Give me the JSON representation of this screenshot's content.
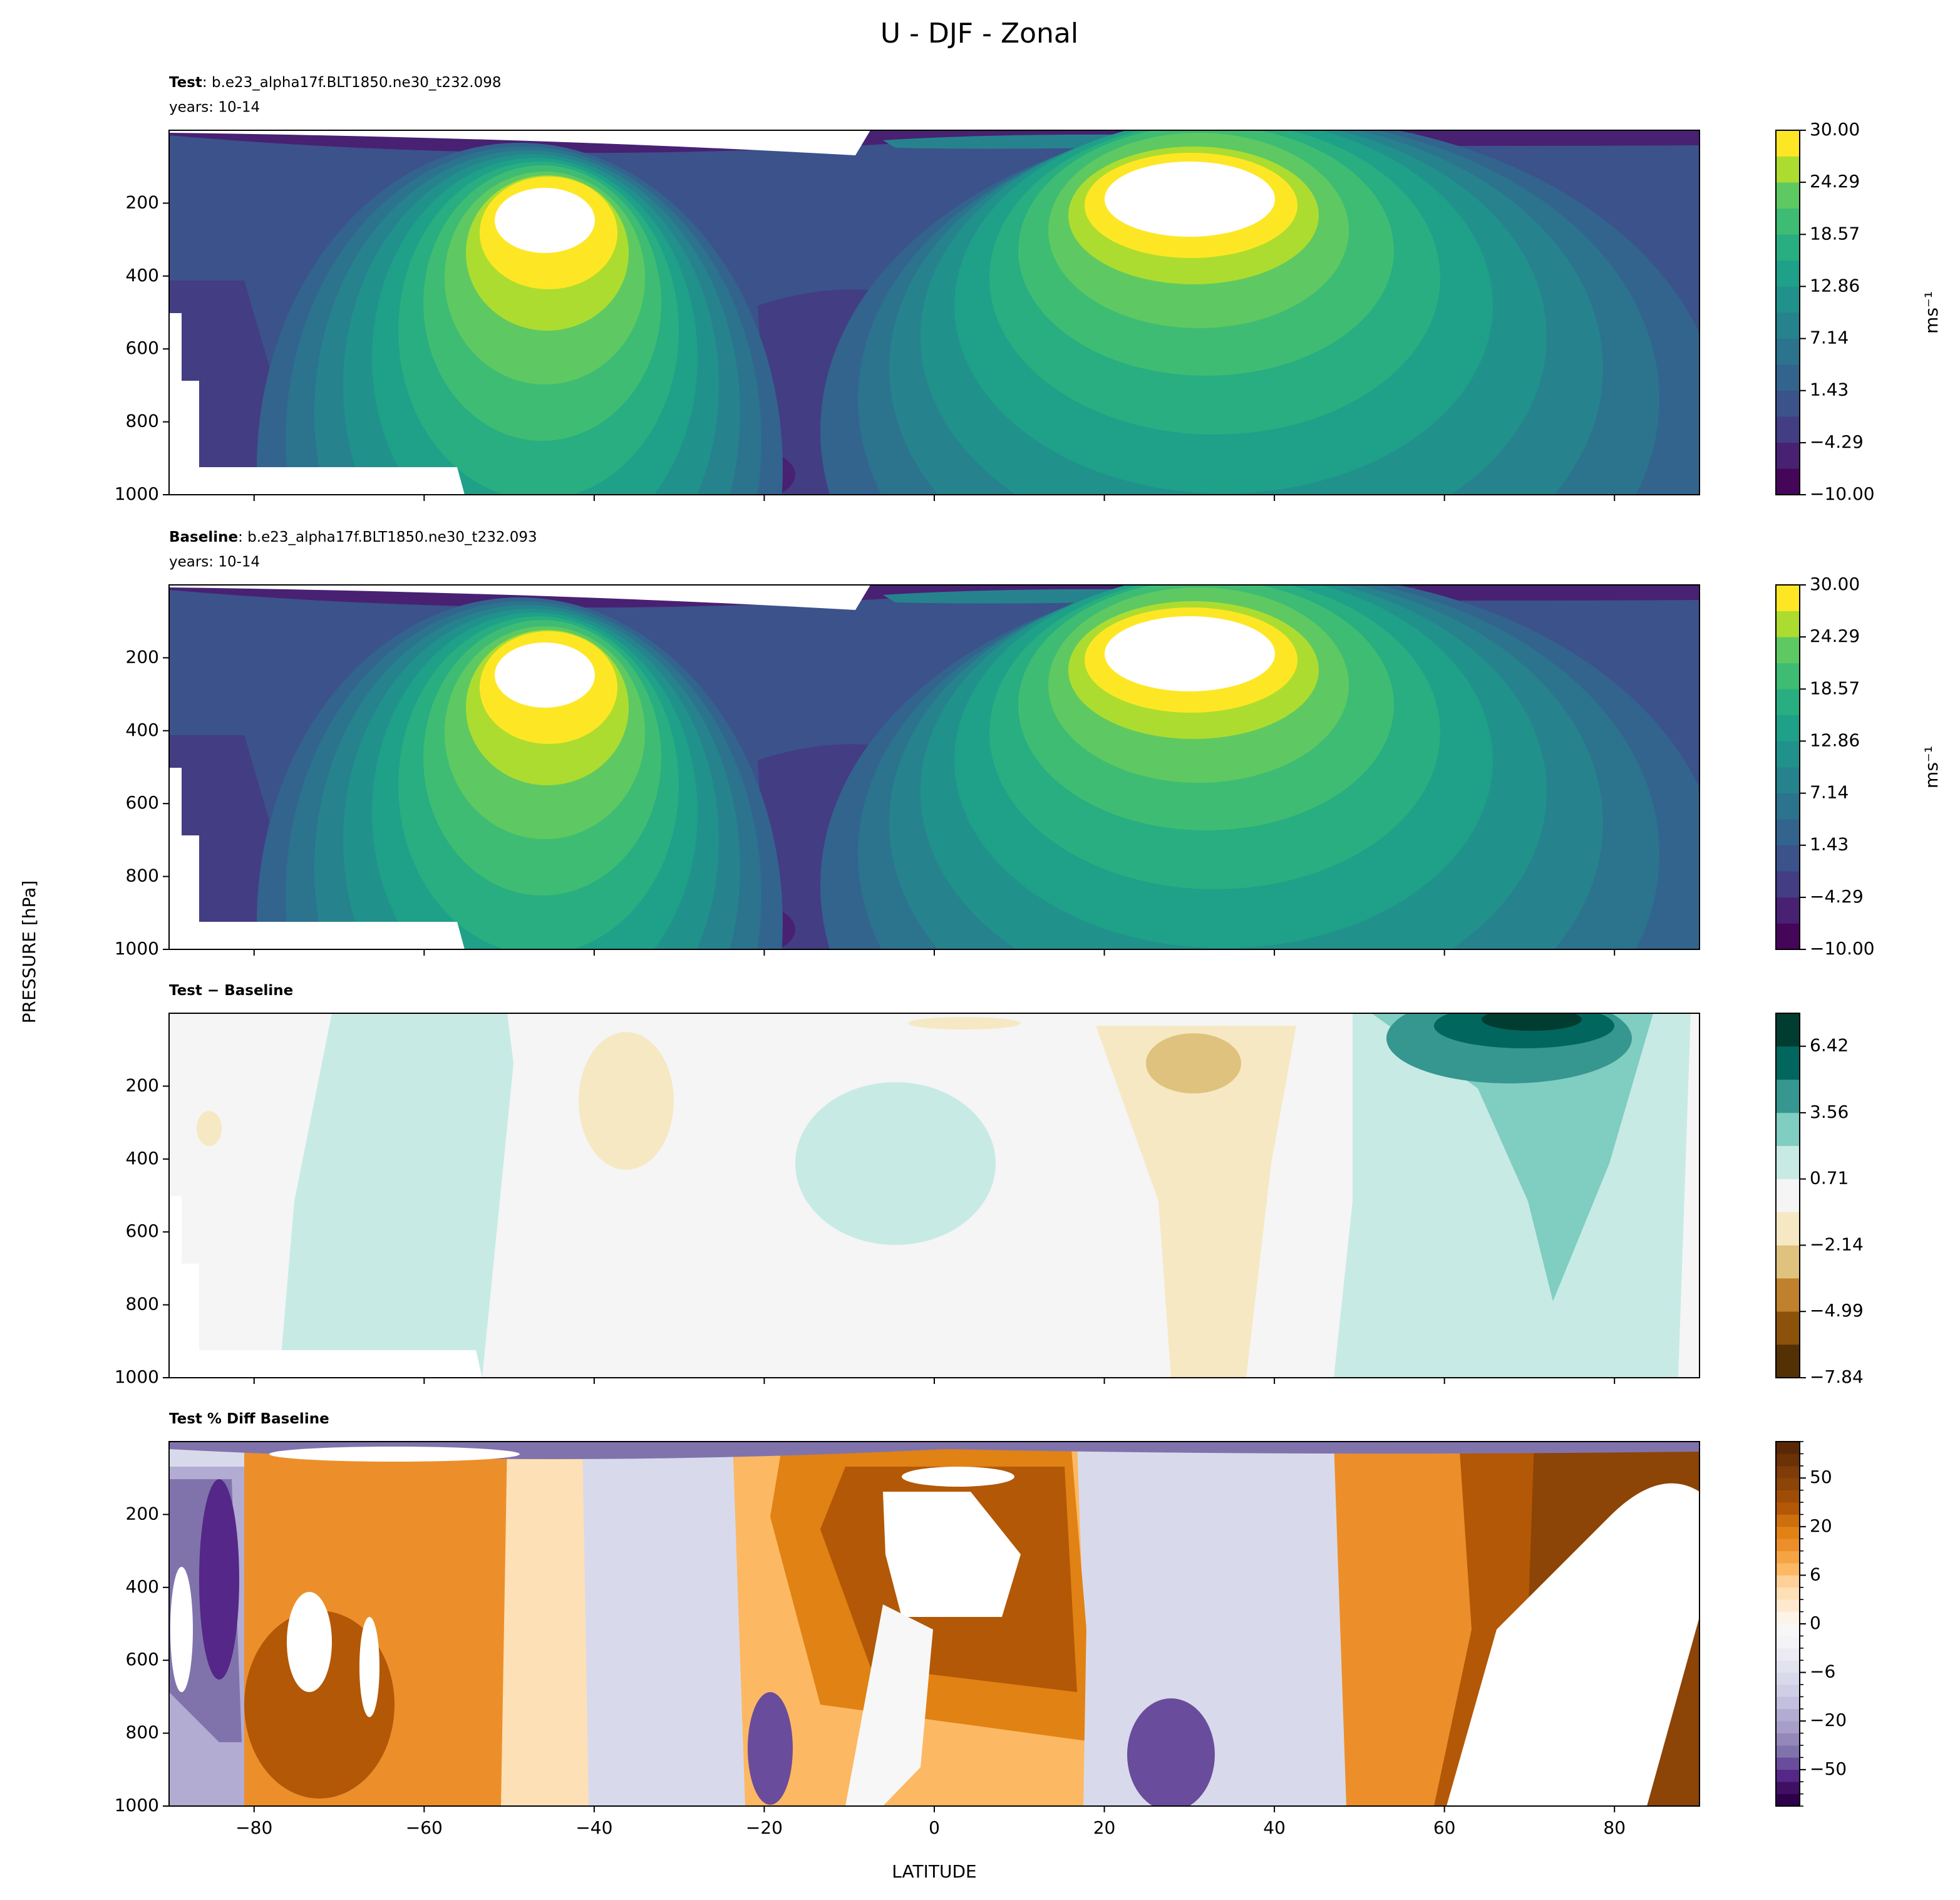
{
  "title": "U - DJF - Zonal",
  "ylabel": "PRESSURE [hPa]",
  "xlabel": "LATITUDE",
  "chart_data": [
    {
      "type": "contour",
      "title_label": "Test",
      "title": ": b.e23_alpha17f.BLT1850.ne30_t232.098",
      "subtitle": "years: 10-14",
      "xlim": [
        -90,
        90
      ],
      "xticks": [
        -80,
        -60,
        -40,
        -20,
        0,
        20,
        40,
        60,
        80
      ],
      "ylim": [
        1000,
        0
      ],
      "yticks": [
        200,
        400,
        600,
        800,
        1000
      ],
      "colorbar": {
        "label": "ms⁻¹",
        "spacing": "proportional",
        "levels": [
          -10,
          -7.142857,
          -4.285714,
          -1.428571,
          1.428571,
          4.285714,
          7.142857,
          10,
          12.857143,
          15.714286,
          18.571429,
          21.428571,
          24.285714,
          27.142857,
          30
        ],
        "colors": [
          "#450559",
          "#482173",
          "#433d84",
          "#3b528b",
          "#32648e",
          "#2c738e",
          "#26838e",
          "#21918c",
          "#1fa088",
          "#28ae80",
          "#3fbc73",
          "#5ec962",
          "#addc30",
          "#fde725"
        ],
        "ticks": [
          {
            "value": -10,
            "label": "−10.00"
          },
          {
            "value": -4.29,
            "label": "−4.29"
          },
          1.43,
          7.14,
          12.86,
          18.57,
          24.29,
          {
            "value": 30,
            "label": "30.00"
          }
        ]
      }
    },
    {
      "type": "contour",
      "title_label": "Baseline",
      "title": ": b.e23_alpha17f.BLT1850.ne30_t232.093",
      "subtitle": "years: 10-14",
      "xlim": [
        -90,
        90
      ],
      "xticks": [
        -80,
        -60,
        -40,
        -20,
        0,
        20,
        40,
        60,
        80
      ],
      "ylim": [
        1000,
        0
      ],
      "yticks": [
        200,
        400,
        600,
        800,
        1000
      ],
      "colorbar": {
        "label": "ms⁻¹",
        "spacing": "proportional",
        "levels": [
          -10,
          -7.142857,
          -4.285714,
          -1.428571,
          1.428571,
          4.285714,
          7.142857,
          10,
          12.857143,
          15.714286,
          18.571429,
          21.428571,
          24.285714,
          27.142857,
          30
        ],
        "colors": [
          "#450559",
          "#482173",
          "#433d84",
          "#3b528b",
          "#32648e",
          "#2c738e",
          "#26838e",
          "#21918c",
          "#1fa088",
          "#28ae80",
          "#3fbc73",
          "#5ec962",
          "#addc30",
          "#fde725"
        ],
        "ticks": [
          {
            "value": -10,
            "label": "−10.00"
          },
          {
            "value": -4.29,
            "label": "−4.29"
          },
          1.43,
          7.14,
          12.86,
          18.57,
          24.29,
          {
            "value": 30,
            "label": "30.00"
          }
        ]
      }
    },
    {
      "type": "contour",
      "title_label": "Test − Baseline",
      "xlim": [
        -90,
        90
      ],
      "xticks": [
        -80,
        -60,
        -40,
        -20,
        0,
        20,
        40,
        60,
        80
      ],
      "ylim": [
        1000,
        0
      ],
      "yticks": [
        200,
        400,
        600,
        800,
        1000
      ],
      "colorbar": {
        "spacing": "proportional",
        "levels": [
          -7.84,
          -6.41,
          -4.99,
          -3.56,
          -2.14,
          -0.71,
          0.71,
          2.14,
          3.56,
          4.99,
          6.42,
          7.84
        ],
        "colors": [
          "#543005",
          "#8c510a",
          "#bf812d",
          "#dfc27d",
          "#f6e8c3",
          "#f5f5f5",
          "#c7eae5",
          "#80cdc1",
          "#35978f",
          "#01665e",
          "#003c30"
        ],
        "ticks": [
          {
            "value": -7.84,
            "label": "−7.84"
          },
          {
            "value": -4.99,
            "label": "−4.99"
          },
          {
            "value": -2.14,
            "label": "−2.14"
          },
          0.71,
          3.56,
          6.42
        ]
      }
    },
    {
      "type": "contour",
      "title_label": "Test % Diff Baseline",
      "xlim": [
        -90,
        90
      ],
      "xticks": [
        {
          "value": -80,
          "label": "−80"
        },
        {
          "value": -60,
          "label": "−60"
        },
        {
          "value": -40,
          "label": "−40"
        },
        {
          "value": -20,
          "label": "−20"
        },
        0,
        20,
        40,
        60,
        80
      ],
      "ylim": [
        1000,
        0
      ],
      "yticks": [
        200,
        400,
        600,
        800,
        1000
      ],
      "colorbar": {
        "spacing": "uniform",
        "levels": [
          -100,
          -75,
          -60,
          -50,
          -40,
          -30,
          -25,
          -20,
          -15,
          -10,
          -8,
          -6,
          -4,
          -2,
          -1,
          0,
          1,
          2,
          4,
          6,
          8,
          10,
          15,
          20,
          25,
          30,
          40,
          50,
          60,
          75,
          100
        ],
        "colors": [
          "#2d004b",
          "#3f0f63",
          "#542788",
          "#6a4c9c",
          "#8073ac",
          "#9488bb",
          "#a79ec9",
          "#b2abd2",
          "#c3bfde",
          "#d0cde6",
          "#d8daeb",
          "#e3e3f0",
          "#ecebf4",
          "#f4f3f7",
          "#f7f7f7",
          "#fdf3e6",
          "#fee9cf",
          "#fee0b6",
          "#fdd09a",
          "#fdb863",
          "#f6a443",
          "#ec8f2a",
          "#e08214",
          "#cc6f0c",
          "#b35806",
          "#9f4d06",
          "#8c4407",
          "#7f3b08",
          "#6b3107",
          "#5a2806"
        ],
        "ticks": [
          {
            "value": -50,
            "label": "−50"
          },
          {
            "value": -20,
            "label": "−20"
          },
          {
            "value": -6,
            "label": "−6"
          },
          0,
          6,
          20,
          50
        ]
      }
    }
  ]
}
